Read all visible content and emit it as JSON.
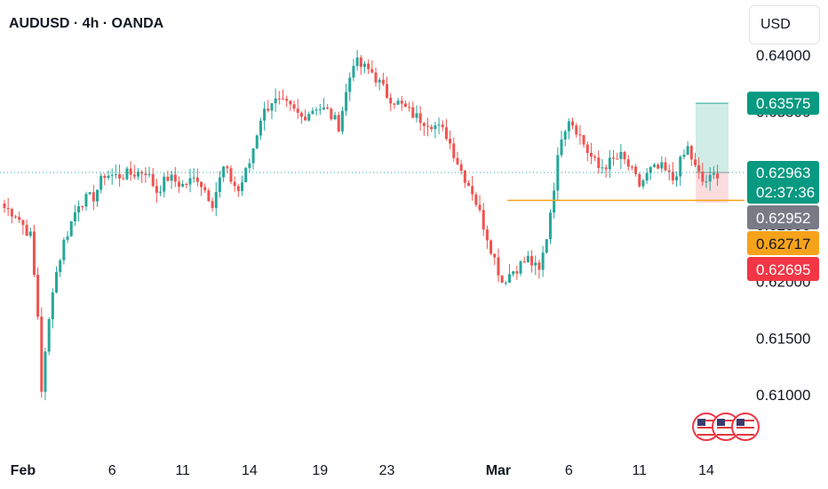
{
  "header": {
    "title": "AUDUSD · 4h · OANDA",
    "currency": "USD"
  },
  "colors": {
    "up": "#26a69a",
    "down": "#ef5350",
    "current_line": "#26a69a",
    "support_line": "#f7a21b",
    "target_zone": "#d1ece6",
    "stop_zone": "#fbdde0",
    "last_label_bg": "#089981",
    "prev_close_bg": "#787b86",
    "support_label_bg": "#f7a21b",
    "stop_label_bg": "#f23645"
  },
  "chart_data": {
    "type": "candlestick",
    "title": "AUDUSD · 4h · OANDA",
    "ylim": [
      0.6075,
      0.6415
    ],
    "y_ticks": [
      "0.64000",
      "0.63500",
      "0.63000",
      "0.62500",
      "0.62000",
      "0.61500",
      "0.61000"
    ],
    "y_tick_values": [
      0.64,
      0.635,
      0.63,
      0.625,
      0.62,
      0.615,
      0.61
    ],
    "x_ticks": [
      {
        "label": "Feb",
        "index": 5,
        "bold": true
      },
      {
        "label": "6",
        "index": 29
      },
      {
        "label": "11",
        "index": 48
      },
      {
        "label": "14",
        "index": 66
      },
      {
        "label": "19",
        "index": 85
      },
      {
        "label": "23",
        "index": 103
      },
      {
        "label": "Mar",
        "index": 133,
        "bold": true
      },
      {
        "label": "6",
        "index": 152
      },
      {
        "label": "11",
        "index": 171
      },
      {
        "label": "14",
        "index": 189
      }
    ],
    "anchors": [
      [
        0,
        0.6265
      ],
      [
        3,
        0.626
      ],
      [
        7,
        0.624
      ],
      [
        9,
        0.617
      ],
      [
        10,
        0.6105
      ],
      [
        13,
        0.6195
      ],
      [
        16,
        0.6235
      ],
      [
        20,
        0.627
      ],
      [
        24,
        0.6275
      ],
      [
        27,
        0.6295
      ],
      [
        30,
        0.6293
      ],
      [
        34,
        0.6295
      ],
      [
        38,
        0.6298
      ],
      [
        41,
        0.628
      ],
      [
        44,
        0.6292
      ],
      [
        48,
        0.6285
      ],
      [
        52,
        0.6292
      ],
      [
        56,
        0.627
      ],
      [
        59,
        0.63
      ],
      [
        63,
        0.628
      ],
      [
        66,
        0.6305
      ],
      [
        69,
        0.6345
      ],
      [
        72,
        0.636
      ],
      [
        76,
        0.6355
      ],
      [
        80,
        0.6345
      ],
      [
        84,
        0.6355
      ],
      [
        87,
        0.635
      ],
      [
        90,
        0.6338
      ],
      [
        94,
        0.6395
      ],
      [
        96,
        0.639
      ],
      [
        99,
        0.6385
      ],
      [
        103,
        0.6365
      ],
      [
        107,
        0.6355
      ],
      [
        111,
        0.6345
      ],
      [
        115,
        0.634
      ],
      [
        119,
        0.633
      ],
      [
        123,
        0.6298
      ],
      [
        126,
        0.628
      ],
      [
        129,
        0.625
      ],
      [
        132,
        0.622
      ],
      [
        134,
        0.62
      ],
      [
        137,
        0.621
      ],
      [
        139,
        0.6215
      ],
      [
        141,
        0.622
      ],
      [
        144,
        0.6208
      ],
      [
        146,
        0.624
      ],
      [
        148,
        0.6285
      ],
      [
        150,
        0.633
      ],
      [
        152,
        0.6345
      ],
      [
        154,
        0.6335
      ],
      [
        157,
        0.6315
      ],
      [
        160,
        0.63
      ],
      [
        163,
        0.6305
      ],
      [
        166,
        0.631
      ],
      [
        168,
        0.6302
      ],
      [
        171,
        0.6285
      ],
      [
        174,
        0.6298
      ],
      [
        177,
        0.63
      ],
      [
        180,
        0.629
      ],
      [
        182,
        0.6305
      ],
      [
        184,
        0.6318
      ],
      [
        186,
        0.63
      ],
      [
        188,
        0.6288
      ],
      [
        190,
        0.629
      ],
      [
        192,
        0.6296
      ]
    ],
    "last_price": 0.62963,
    "support": 0.62717,
    "target": 0.63575,
    "stop": 0.62695,
    "prev_close": 0.62952
  },
  "price_labels": {
    "target": "0.63575",
    "last": "0.62963",
    "countdown": "02:37:36",
    "prev_close": "0.62952",
    "support": "0.62717",
    "stop": "0.62695"
  },
  "events": {
    "icon": "us-flag-icon",
    "count": 3
  }
}
